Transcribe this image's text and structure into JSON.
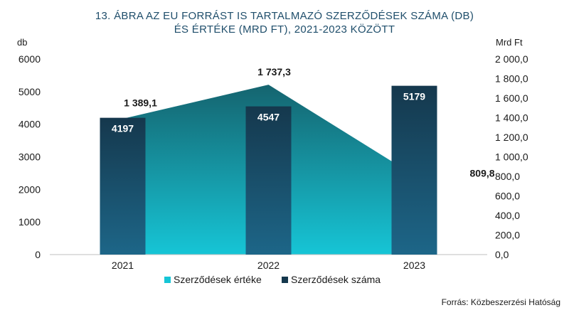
{
  "title_line1": "13. ÁBRA  AZ EU FORRÁST  IS TARTALMAZÓ  SZERZŐDÉSEK SZÁMA (DB)",
  "title_line2": "ÉS ÉRTÉKE (MRD  FT), 2021-2023 KÖZÖTT",
  "source": "Forrás: Közbeszerzési Hatóság",
  "colors": {
    "bar_top": "#15384d",
    "bar_bottom": "#1d6688",
    "area_top": "#15646f",
    "area_bottom": "#16c5d6"
  },
  "chart_data": {
    "type": "bar",
    "categories": [
      "2021",
      "2022",
      "2023"
    ],
    "series": [
      {
        "name": "Szerződések értéke",
        "type": "area",
        "axis": "right",
        "values": [
          1389.1,
          1737.3,
          809.8
        ],
        "labels": [
          "1 389,1",
          "1 737,3",
          "809,8"
        ]
      },
      {
        "name": "Szerződések száma",
        "type": "bar",
        "axis": "left",
        "values": [
          4197,
          4547,
          5179
        ],
        "labels": [
          "4197",
          "4547",
          "5179"
        ]
      }
    ],
    "ylabel": "db",
    "y2label": "Mrd Ft",
    "ylim": [
      0,
      6000
    ],
    "y2lim": [
      0,
      2000
    ],
    "yticks": [
      "0",
      "1000",
      "2000",
      "3000",
      "4000",
      "5000",
      "6000"
    ],
    "y2ticks": [
      "0,0",
      "200,0",
      "400,0",
      "600,0",
      "800,0",
      "1 000,0",
      "1 200,0",
      "1 400,0",
      "1 600,0",
      "1 800,0",
      "2 000,0"
    ],
    "grid": false,
    "legend_position": "bottom"
  }
}
